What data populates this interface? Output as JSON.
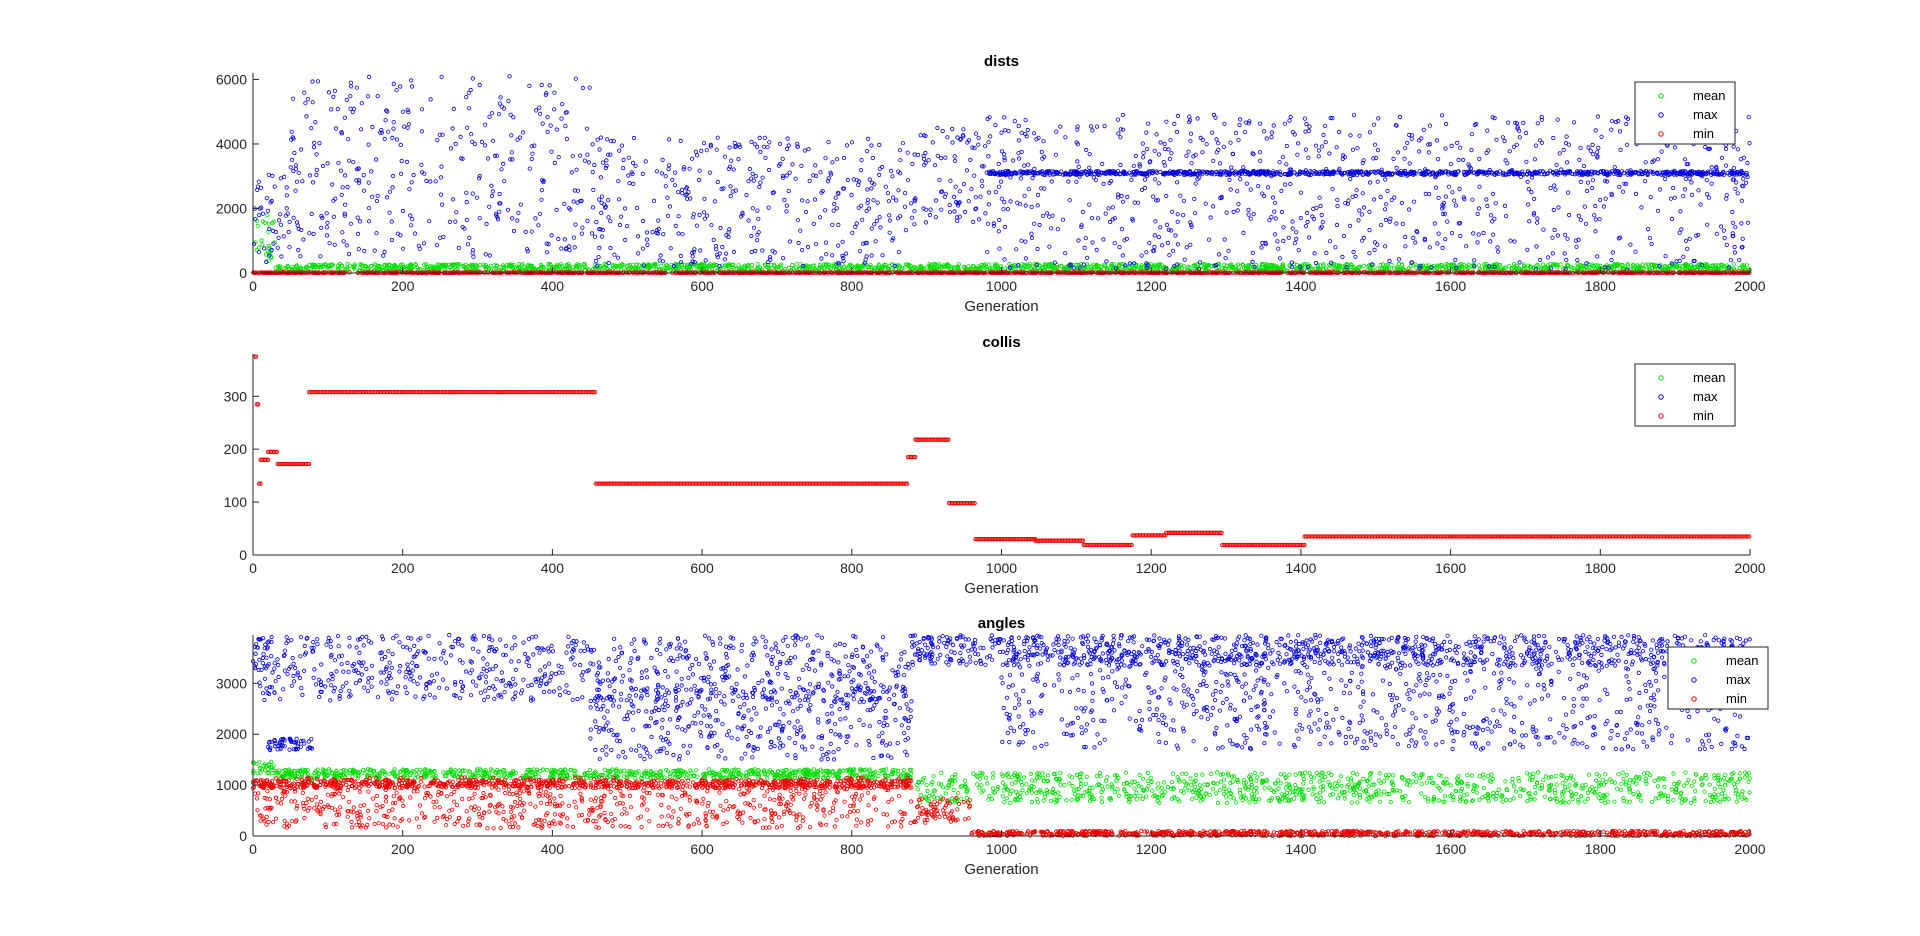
{
  "colors": {
    "mean": "#00dd00",
    "max": "#0000dd",
    "min": "#ee0000",
    "axis": "#262626"
  },
  "chart_data": [
    {
      "type": "scatter",
      "title": "dists",
      "xlabel": "Generation",
      "ylabel": "",
      "xlim": [
        0,
        2000
      ],
      "ylim": [
        0,
        6200
      ],
      "xticks": [
        0,
        200,
        400,
        600,
        800,
        1000,
        1200,
        1400,
        1600,
        1800,
        2000
      ],
      "yticks": [
        0,
        2000,
        4000,
        6000
      ],
      "legend": "top-right",
      "series": [
        {
          "name": "mean",
          "color": "mean",
          "bands": [
            {
              "x": [
                0,
                30
              ],
              "center": 1000,
              "spread": 800
            },
            {
              "x": [
                30,
                2000
              ],
              "center": 170,
              "spread": 110
            }
          ]
        },
        {
          "name": "max",
          "color": "max",
          "bands": [
            {
              "x": [
                0,
                50
              ],
              "center": 1500,
              "spread": 1600
            },
            {
              "x": [
                50,
                450
              ],
              "center": 3300,
              "spread": 2800
            },
            {
              "x": [
                450,
                880
              ],
              "center": 2200,
              "spread": 2000
            },
            {
              "x": [
                880,
                980
              ],
              "center": 3000,
              "spread": 1500
            },
            {
              "x": [
                980,
                2000
              ],
              "center": 3100,
              "spread": 60
            },
            {
              "x": [
                980,
                2000
              ],
              "center": 2500,
              "spread": 2400
            }
          ]
        },
        {
          "name": "min",
          "color": "min",
          "bands": [
            {
              "x": [
                0,
                2000
              ],
              "center": 10,
              "spread": 10
            }
          ]
        }
      ]
    },
    {
      "type": "scatter",
      "title": "collis",
      "xlabel": "Generation",
      "ylabel": "",
      "xlim": [
        0,
        2000
      ],
      "ylim": [
        0,
        380
      ],
      "xticks": [
        0,
        200,
        400,
        600,
        800,
        1000,
        1200,
        1400,
        1600,
        1800,
        2000
      ],
      "yticks": [
        0,
        100,
        200,
        300
      ],
      "legend": "top-right",
      "series": [
        {
          "name": "mean",
          "color": "mean",
          "bands": []
        },
        {
          "name": "max",
          "color": "max",
          "bands": []
        },
        {
          "name": "min",
          "color": "min",
          "steps": [
            {
              "x": [
                2,
                4
              ],
              "y": 375
            },
            {
              "x": [
                5,
                7
              ],
              "y": 285
            },
            {
              "x": [
                8,
                10
              ],
              "y": 135
            },
            {
              "x": [
                10,
                20
              ],
              "y": 180
            },
            {
              "x": [
                20,
                33
              ],
              "y": 195
            },
            {
              "x": [
                33,
                75
              ],
              "y": 172
            },
            {
              "x": [
                75,
                458
              ],
              "y": 308
            },
            {
              "x": [
                458,
                875
              ],
              "y": 135
            },
            {
              "x": [
                875,
                885
              ],
              "y": 185
            },
            {
              "x": [
                885,
                930
              ],
              "y": 218
            },
            {
              "x": [
                930,
                965
              ],
              "y": 98
            },
            {
              "x": [
                965,
                1045
              ],
              "y": 30
            },
            {
              "x": [
                1045,
                1110
              ],
              "y": 27
            },
            {
              "x": [
                1110,
                1175
              ],
              "y": 19
            },
            {
              "x": [
                1175,
                1220
              ],
              "y": 37
            },
            {
              "x": [
                1220,
                1295
              ],
              "y": 42
            },
            {
              "x": [
                1295,
                1405
              ],
              "y": 19
            },
            {
              "x": [
                1405,
                2000
              ],
              "y": 35
            }
          ]
        }
      ]
    },
    {
      "type": "scatter",
      "title": "angles",
      "xlabel": "Generation",
      "ylabel": "",
      "xlim": [
        0,
        2000
      ],
      "ylim": [
        0,
        3950
      ],
      "xticks": [
        0,
        200,
        400,
        600,
        800,
        1000,
        1200,
        1400,
        1600,
        1800,
        2000
      ],
      "yticks": [
        0,
        1000,
        2000,
        3000
      ],
      "legend": "top-right",
      "series": [
        {
          "name": "mean",
          "color": "mean",
          "bands": [
            {
              "x": [
                0,
                30
              ],
              "center": 1350,
              "spread": 120
            },
            {
              "x": [
                30,
                880
              ],
              "center": 1220,
              "spread": 90
            },
            {
              "x": [
                880,
                2000
              ],
              "center": 950,
              "spread": 300
            }
          ]
        },
        {
          "name": "max",
          "color": "max",
          "bands": [
            {
              "x": [
                0,
                20
              ],
              "center": 3600,
              "spread": 400
            },
            {
              "x": [
                20,
                80
              ],
              "center": 1800,
              "spread": 120
            },
            {
              "x": [
                0,
                880
              ],
              "center": 3300,
              "spread": 650
            },
            {
              "x": [
                450,
                880
              ],
              "center": 2200,
              "spread": 700
            },
            {
              "x": [
                880,
                2000
              ],
              "center": 3650,
              "spread": 300
            },
            {
              "x": [
                1000,
                2000
              ],
              "center": 2700,
              "spread": 1000
            }
          ]
        },
        {
          "name": "min",
          "color": "min",
          "bands": [
            {
              "x": [
                0,
                880
              ],
              "center": 1020,
              "spread": 80
            },
            {
              "x": [
                0,
                880
              ],
              "center": 650,
              "spread": 500
            },
            {
              "x": [
                880,
                960
              ],
              "center": 500,
              "spread": 250
            },
            {
              "x": [
                960,
                2000
              ],
              "center": 50,
              "spread": 50
            }
          ]
        }
      ]
    }
  ]
}
